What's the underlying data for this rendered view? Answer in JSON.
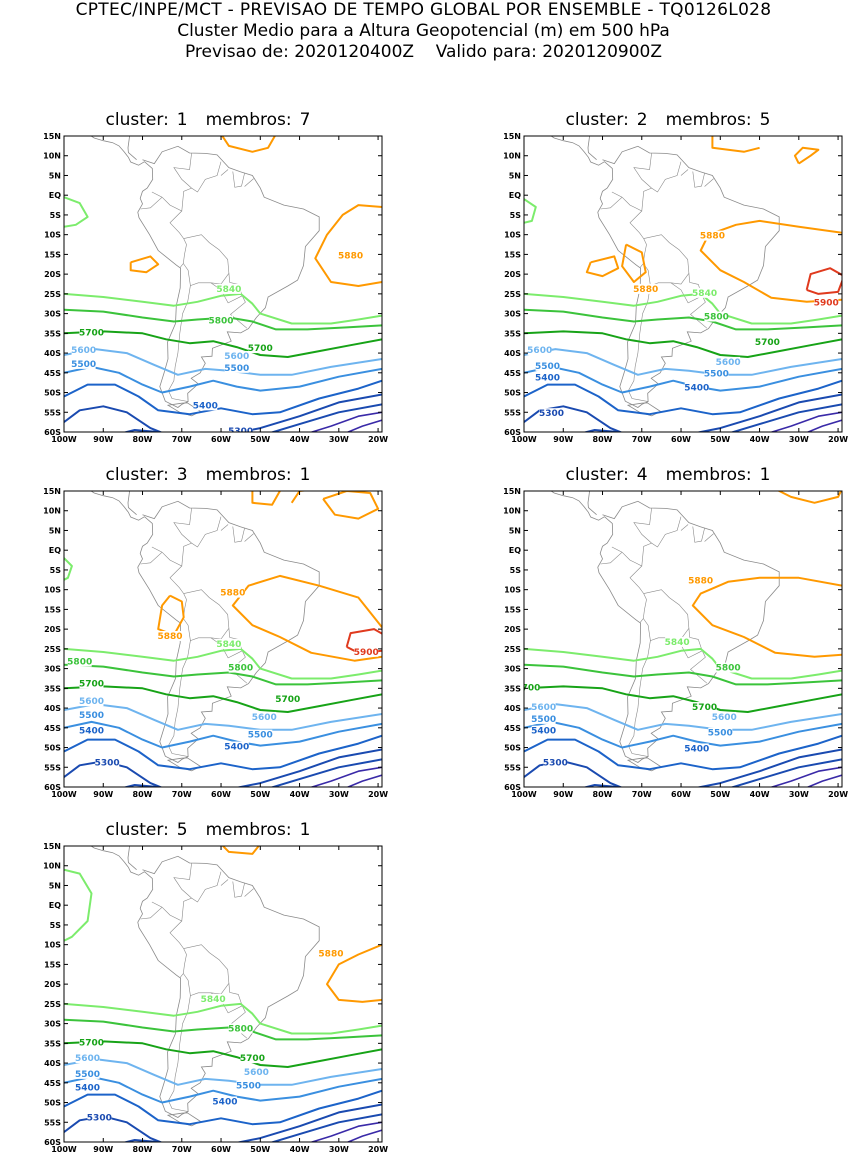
{
  "header": {
    "line1": "CPTEC/INPE/MCT - PREVISAO DE TEMPO GLOBAL POR ENSEMBLE - TQ0126L028",
    "line2": "Cluster Medio para a Altura Geopotencial (m) em 500 hPa",
    "line3_prefix": "Previsao de: 2020120400Z",
    "line3_suffix": "Valido para: 2020120900Z"
  },
  "axes": {
    "lat_labels": [
      "15N",
      "10N",
      "5N",
      "EQ",
      "5S",
      "10S",
      "15S",
      "20S",
      "25S",
      "30S",
      "35S",
      "40S",
      "45S",
      "50S",
      "55S",
      "60S"
    ],
    "lon_labels": [
      "100W",
      "90W",
      "80W",
      "70W",
      "60W",
      "50W",
      "40W",
      "30W",
      "20W"
    ]
  },
  "contour_colors": {
    "5900": "#e03a1e",
    "5880": "#ff9900",
    "5840": "#7cec6c",
    "5800": "#3bc33b",
    "5700": "#17a317",
    "5600": "#6eb4ef",
    "5500": "#3a8fe0",
    "5400": "#1c63c9",
    "5300": "#1a4ab0",
    "low": "#3a2aa8"
  },
  "panels": [
    {
      "cluster_label": "cluster:",
      "cluster": "1",
      "members_label": "membros:",
      "members": "7",
      "labels": [
        {
          "t": "5880"
        },
        {
          "t": "5840"
        },
        {
          "t": "5800"
        },
        {
          "t": "5700"
        },
        {
          "t": "5700"
        },
        {
          "t": "5600"
        },
        {
          "t": "5600"
        },
        {
          "t": "5500"
        },
        {
          "t": "5500"
        },
        {
          "t": "5400"
        },
        {
          "t": "5300"
        }
      ]
    },
    {
      "cluster_label": "cluster:",
      "cluster": "2",
      "members_label": "membros:",
      "members": "5",
      "labels": [
        {
          "t": "5880"
        },
        {
          "t": "5880"
        },
        {
          "t": "5900"
        },
        {
          "t": "5840"
        },
        {
          "t": "5800"
        },
        {
          "t": "5700"
        },
        {
          "t": "5600"
        },
        {
          "t": "5600"
        },
        {
          "t": "5500"
        },
        {
          "t": "5500"
        },
        {
          "t": "5400"
        },
        {
          "t": "5400"
        },
        {
          "t": "5300"
        }
      ]
    },
    {
      "cluster_label": "cluster:",
      "cluster": "3",
      "members_label": "membros:",
      "members": "1",
      "labels": [
        {
          "t": "5880"
        },
        {
          "t": "5880"
        },
        {
          "t": "5900"
        },
        {
          "t": "5840"
        },
        {
          "t": "5800"
        },
        {
          "t": "5800"
        },
        {
          "t": "5700"
        },
        {
          "t": "5700"
        },
        {
          "t": "5600"
        },
        {
          "t": "5600"
        },
        {
          "t": "5500"
        },
        {
          "t": "5500"
        },
        {
          "t": "5400"
        },
        {
          "t": "5400"
        },
        {
          "t": "5300"
        }
      ]
    },
    {
      "cluster_label": "cluster:",
      "cluster": "4",
      "members_label": "membros:",
      "members": "1",
      "labels": [
        {
          "t": "5880"
        },
        {
          "t": "5840"
        },
        {
          "t": "5800"
        },
        {
          "t": "5700"
        },
        {
          "t": "5700"
        },
        {
          "t": "5600"
        },
        {
          "t": "5600"
        },
        {
          "t": "5500"
        },
        {
          "t": "5500"
        },
        {
          "t": "5400"
        },
        {
          "t": "5400"
        },
        {
          "t": "5300"
        }
      ]
    },
    {
      "cluster_label": "cluster:",
      "cluster": "5",
      "members_label": "membros:",
      "members": "1",
      "labels": [
        {
          "t": "5880"
        },
        {
          "t": "5840"
        },
        {
          "t": "5800"
        },
        {
          "t": "5700"
        },
        {
          "t": "5700"
        },
        {
          "t": "5600"
        },
        {
          "t": "5600"
        },
        {
          "t": "5500"
        },
        {
          "t": "5500"
        },
        {
          "t": "5400"
        },
        {
          "t": "5400"
        },
        {
          "t": "5300"
        }
      ]
    }
  ]
}
